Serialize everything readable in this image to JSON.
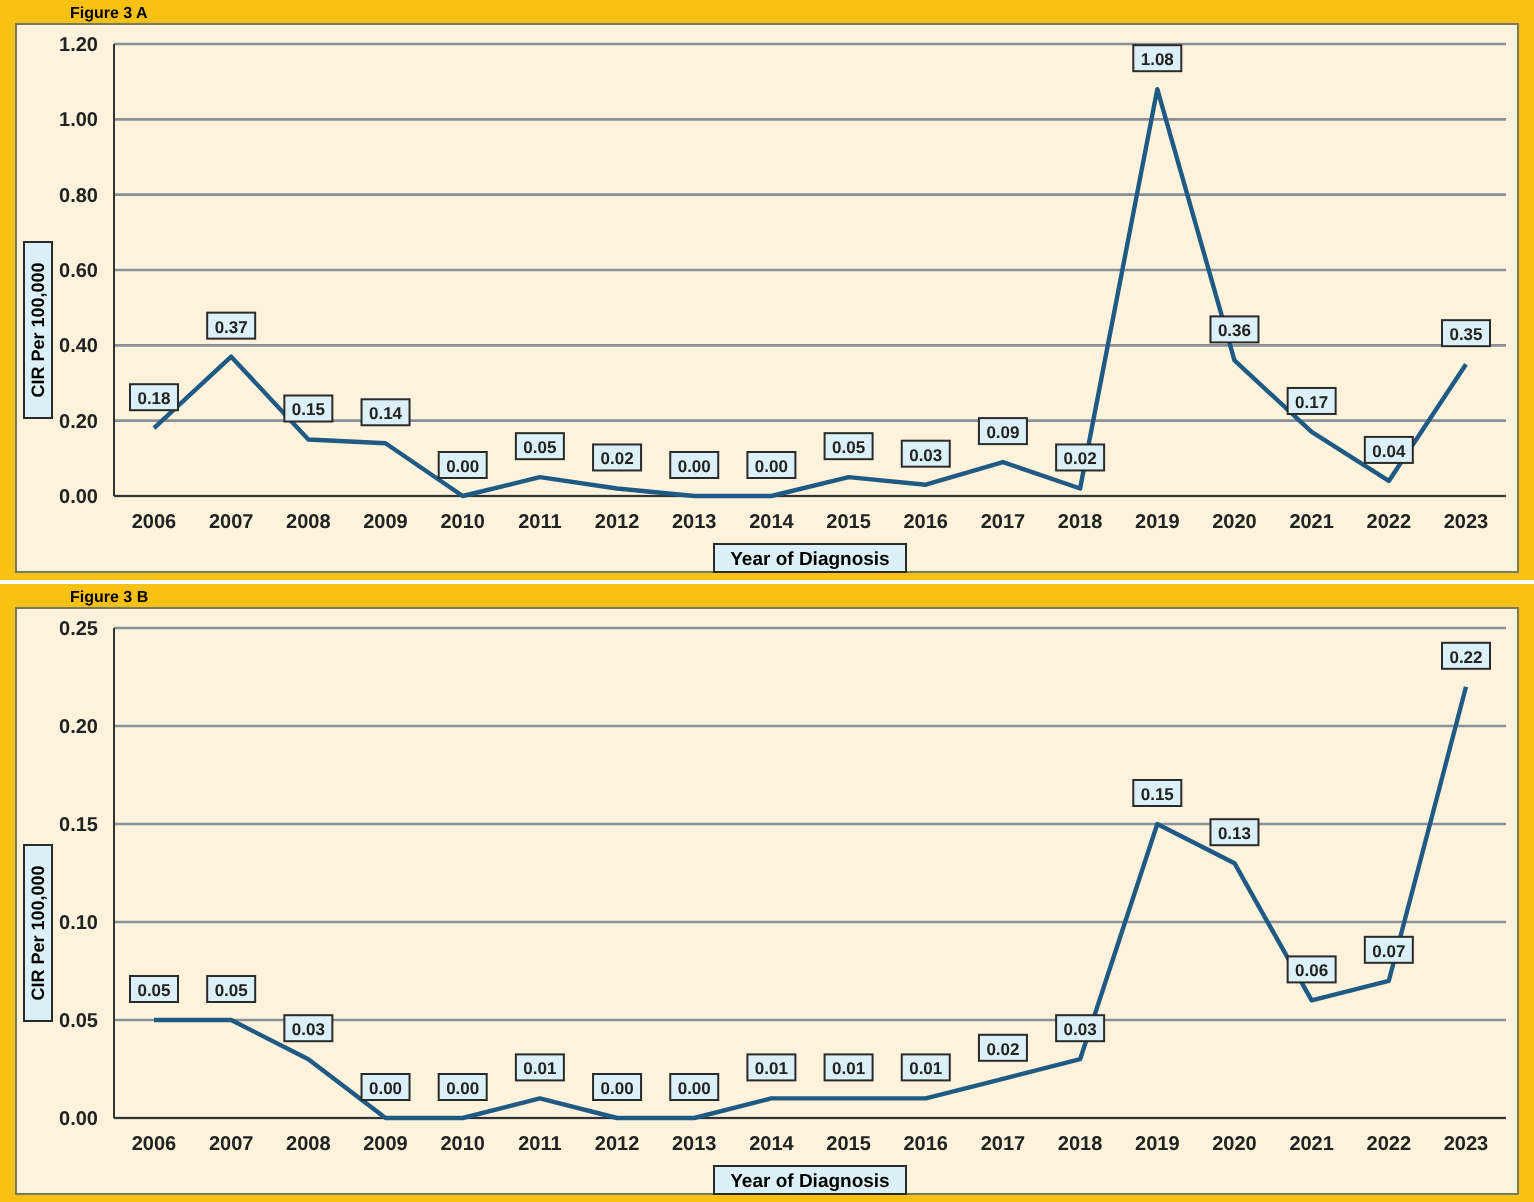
{
  "chart_data": [
    {
      "type": "line",
      "title": "Figure 3 A",
      "xlabel": "Year of Diagnosis",
      "ylabel": "CIR Per 100,000",
      "categories": [
        "2006",
        "2007",
        "2008",
        "2009",
        "2010",
        "2011",
        "2012",
        "2013",
        "2014",
        "2015",
        "2016",
        "2017",
        "2018",
        "2019",
        "2020",
        "2021",
        "2022",
        "2023"
      ],
      "series": [
        {
          "color": "#1f5a84",
          "values": [
            0.18,
            0.37,
            0.15,
            0.14,
            0.0,
            0.05,
            0.02,
            0.0,
            0.0,
            0.05,
            0.03,
            0.09,
            0.02,
            1.08,
            0.36,
            0.17,
            0.04,
            0.35
          ],
          "value_labels": [
            "0.18",
            "0.37",
            "0.15",
            "0.14",
            "0.00",
            "0.05",
            "0.02",
            "0.00",
            "0.00",
            "0.05",
            "0.03",
            "0.09",
            "0.02",
            "1.08",
            "0.36",
            "0.17",
            "0.04",
            "0.35"
          ]
        }
      ],
      "ylim": [
        0,
        1.2
      ],
      "yticks": [
        {
          "value": 0,
          "label": "0.00"
        },
        {
          "value": 0.2,
          "label": "0.20"
        },
        {
          "value": 0.4,
          "label": "0.40"
        },
        {
          "value": 0.6,
          "label": "0.60"
        },
        {
          "value": 0.8,
          "label": "0.80"
        },
        {
          "value": 1,
          "label": "1.00"
        },
        {
          "value": 1.2,
          "label": "1.20"
        }
      ],
      "grid": "y",
      "marker": "none",
      "line_style": "solid"
    },
    {
      "type": "line",
      "title": "Figure 3 B",
      "xlabel": "Year of Diagnosis",
      "ylabel": "CIR Per 100,000",
      "categories": [
        "2006",
        "2007",
        "2008",
        "2009",
        "2010",
        "2011",
        "2012",
        "2013",
        "2014",
        "2015",
        "2016",
        "2017",
        "2018",
        "2019",
        "2020",
        "2021",
        "2022",
        "2023"
      ],
      "series": [
        {
          "color": "#1f5a84",
          "values": [
            0.05,
            0.05,
            0.03,
            0.0,
            0.0,
            0.01,
            0.0,
            0.0,
            0.01,
            0.01,
            0.01,
            0.02,
            0.03,
            0.15,
            0.13,
            0.06,
            0.07,
            0.22
          ],
          "value_labels": [
            "0.05",
            "0.05",
            "0.03",
            "0.00",
            "0.00",
            "0.01",
            "0.00",
            "0.00",
            "0.01",
            "0.01",
            "0.01",
            "0.02",
            "0.03",
            "0.15",
            "0.13",
            "0.06",
            "0.07",
            "0.22"
          ]
        }
      ],
      "ylim": [
        0,
        0.25
      ],
      "yticks": [
        {
          "value": 0,
          "label": "0.00"
        },
        {
          "value": 0.05,
          "label": "0.05"
        },
        {
          "value": 0.1,
          "label": "0.10"
        },
        {
          "value": 0.15,
          "label": "0.15"
        },
        {
          "value": 0.2,
          "label": "0.20"
        },
        {
          "value": 0.25,
          "label": "0.25"
        }
      ],
      "grid": "y",
      "marker": "none",
      "line_style": "solid"
    }
  ]
}
